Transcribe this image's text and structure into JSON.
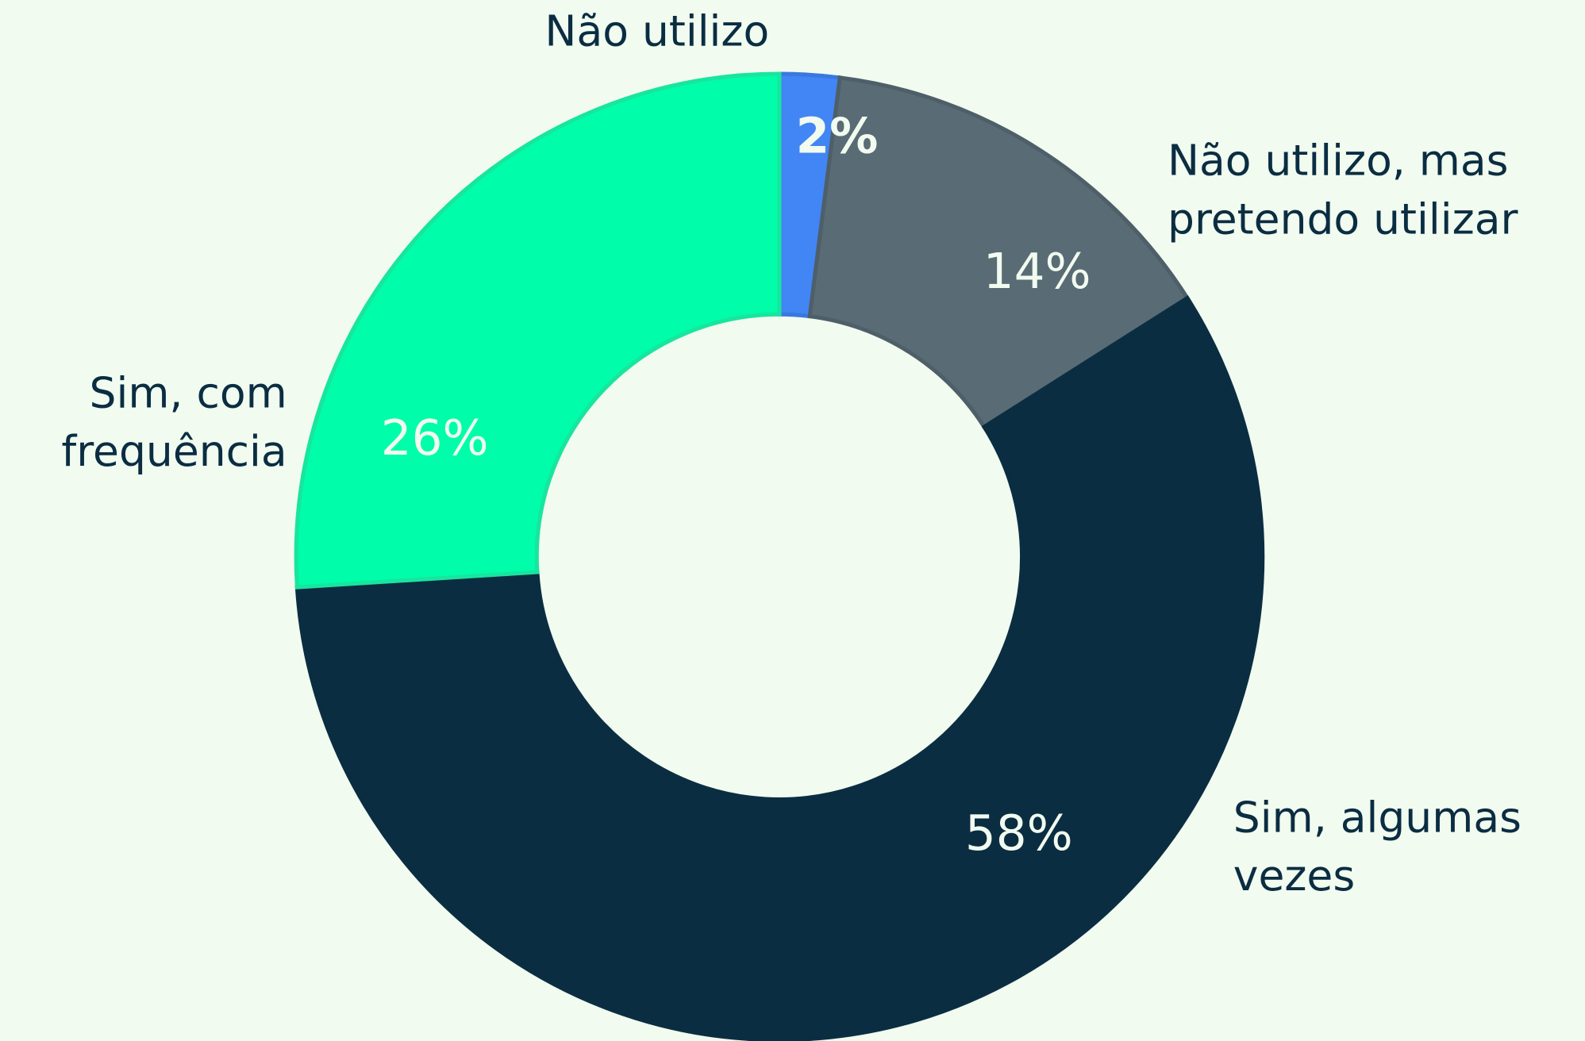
{
  "chart_data": {
    "type": "donut",
    "categories": [
      "Não utilizo",
      "Não utilizo, mas pretendo utilizar",
      "Sim, algumas vezes",
      "Sim, com frequência"
    ],
    "values": [
      2,
      14,
      58,
      26
    ],
    "value_labels": [
      "2%",
      "14%",
      "58%",
      "26%"
    ],
    "colors": [
      "#4285f4",
      "#596b75",
      "#0b2d42",
      "#00fdaa"
    ]
  }
}
